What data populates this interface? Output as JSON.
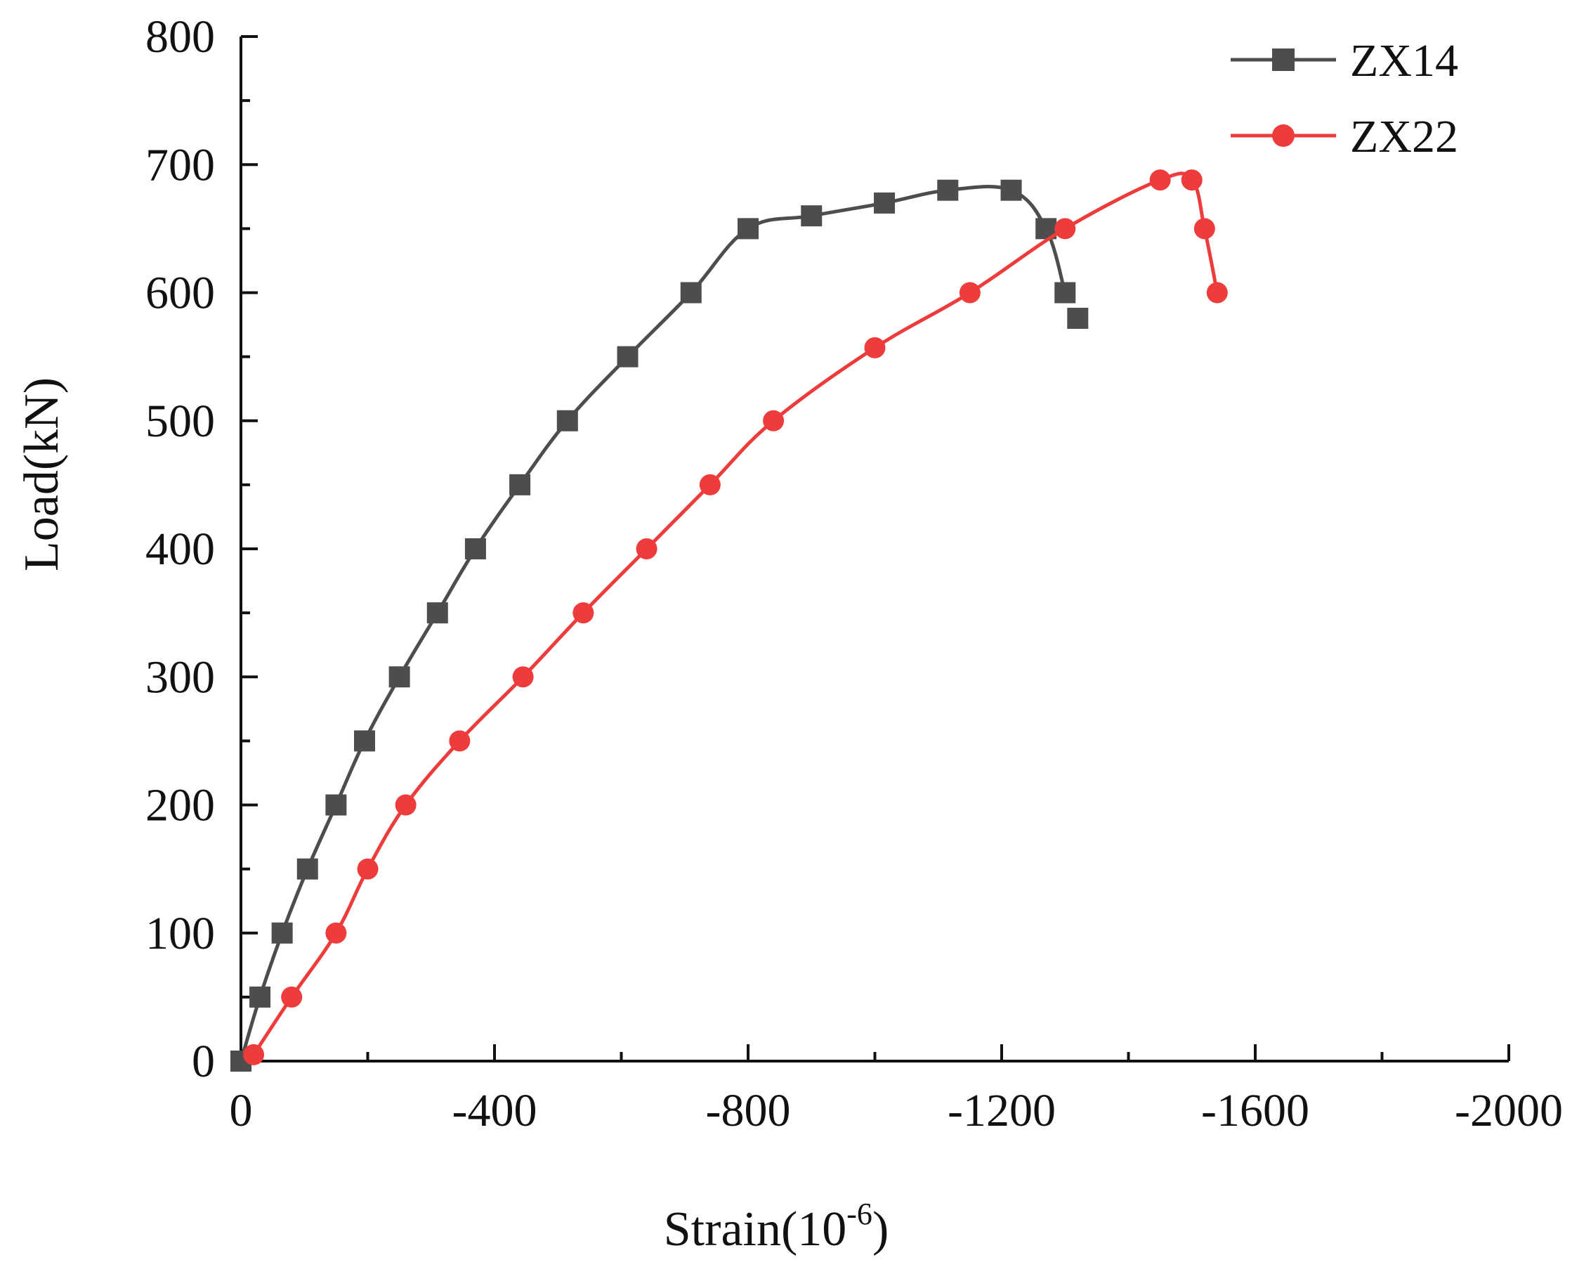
{
  "chart_data": {
    "type": "line",
    "title": "",
    "xlabel": "Strain(10",
    "xlabel_superscript": "-6",
    "xlabel_suffix": ")",
    "ylabel": "Load(kN)",
    "xlim": [
      0,
      -2000
    ],
    "ylim": [
      0,
      800
    ],
    "xticks": [
      0,
      -400,
      -800,
      -1200,
      -1600,
      -2000
    ],
    "xtick_labels": [
      "0",
      "-400",
      "-800",
      "-1200",
      "-1600",
      "-2000"
    ],
    "yticks": [
      0,
      100,
      200,
      300,
      400,
      500,
      600,
      700,
      800
    ],
    "ytick_labels": [
      "0",
      "100",
      "200",
      "300",
      "400",
      "500",
      "600",
      "700",
      "800"
    ],
    "grid": false,
    "legend_position": "top-right",
    "series": [
      {
        "name": "ZX14",
        "color": "#4d4d4d",
        "marker": "square",
        "x": [
          0,
          -30,
          -65,
          -105,
          -150,
          -195,
          -250,
          -310,
          -370,
          -440,
          -515,
          -610,
          -710,
          -800,
          -900,
          -1015,
          -1115,
          -1215,
          -1270,
          -1300,
          -1320
        ],
        "y": [
          0,
          50,
          100,
          150,
          200,
          250,
          300,
          350,
          400,
          450,
          500,
          550,
          600,
          650,
          660,
          670,
          680,
          680,
          650,
          600,
          580
        ]
      },
      {
        "name": "ZX22",
        "color": "#ee3b3b",
        "marker": "circle",
        "x": [
          -20,
          -80,
          -150,
          -200,
          -260,
          -345,
          -445,
          -540,
          -640,
          -740,
          -840,
          -1000,
          -1150,
          -1300,
          -1450,
          -1500,
          -1520,
          -1540
        ],
        "y": [
          5,
          50,
          100,
          150,
          200,
          250,
          300,
          350,
          400,
          450,
          500,
          557,
          600,
          650,
          688,
          688,
          650,
          600
        ]
      }
    ]
  }
}
